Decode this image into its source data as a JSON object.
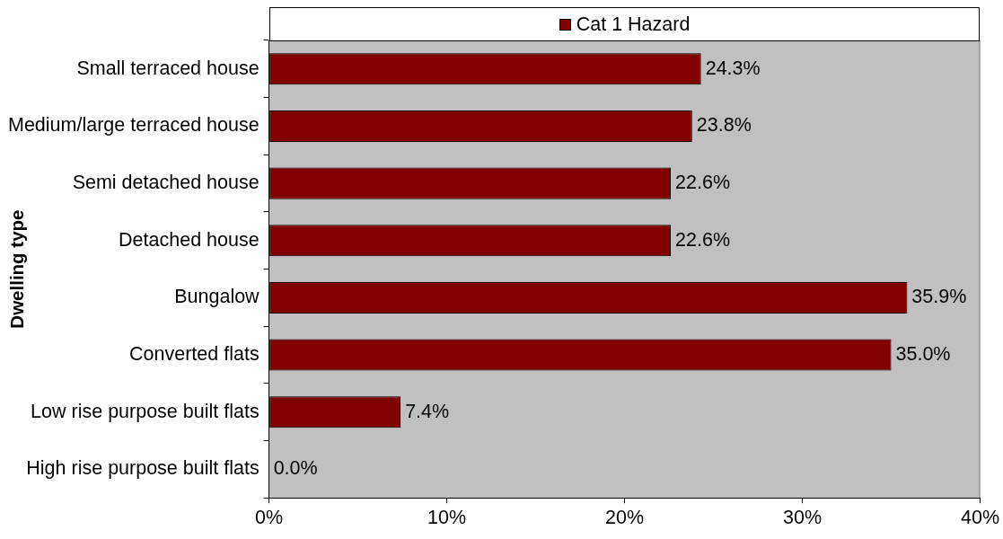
{
  "chart_data": {
    "type": "bar",
    "orientation": "horizontal",
    "ylabel": "Dwelling type",
    "categories": [
      "Small terraced house",
      "Medium/large terraced house",
      "Semi detached house",
      "Detached house",
      "Bungalow",
      "Converted flats",
      "Low rise purpose built flats",
      "High rise purpose built flats"
    ],
    "series": [
      {
        "name": "Cat 1 Hazard",
        "color": "#800000",
        "values": [
          24.3,
          23.8,
          22.6,
          22.6,
          35.9,
          35.0,
          7.4,
          0.0
        ],
        "value_labels": [
          "24.3%",
          "23.8%",
          "22.6%",
          "22.6%",
          "35.9%",
          "35.0%",
          "7.4%",
          "0.0%"
        ]
      }
    ],
    "xlim": [
      0,
      40
    ],
    "xticks": [
      {
        "value": 0,
        "label": "0%"
      },
      {
        "value": 10,
        "label": "10%"
      },
      {
        "value": 20,
        "label": "20%"
      },
      {
        "value": 30,
        "label": "30%"
      },
      {
        "value": 40,
        "label": "40%"
      }
    ],
    "grid": false,
    "legend": "top"
  }
}
